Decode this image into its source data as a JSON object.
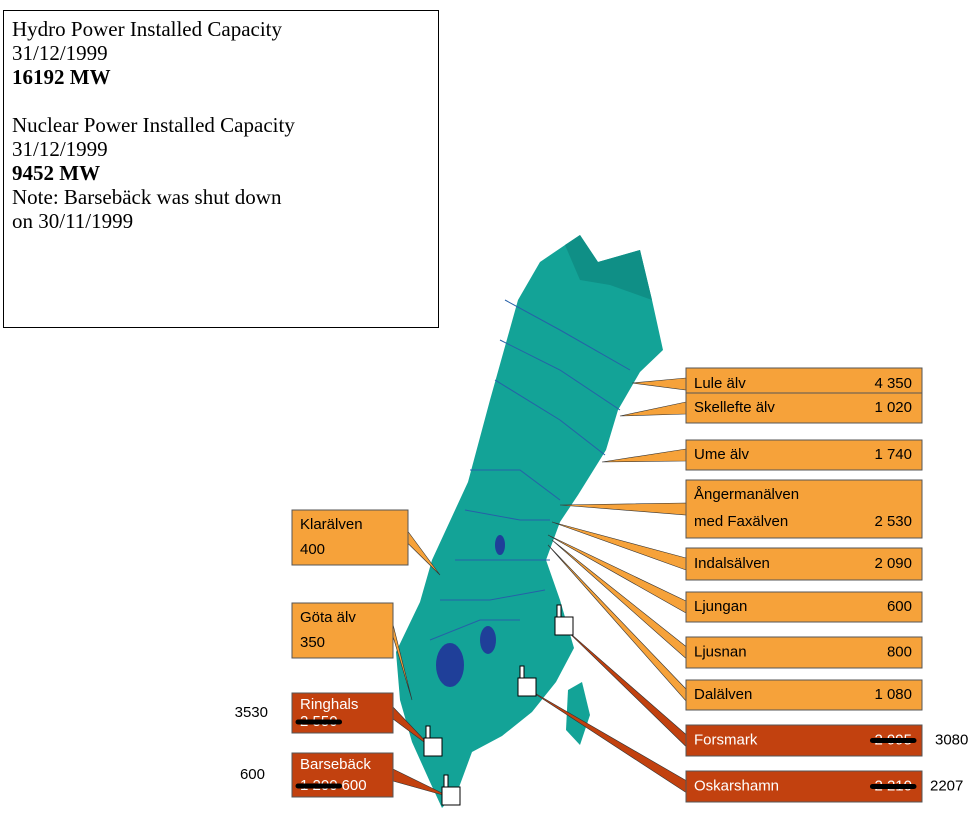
{
  "info": {
    "hydro": {
      "title": "Hydro Power Installed Capacity",
      "date": "31/12/1999",
      "value": "16192 MW"
    },
    "nuclear": {
      "title": "Nuclear Power Installed Capacity",
      "date": "31/12/1999",
      "value": "9452 MW",
      "note_line1": "Note: Barsebäck was shut down",
      "note_line2": "on 30/11/1999"
    }
  },
  "rivers": [
    {
      "name": "Lule älv",
      "value": "4 350"
    },
    {
      "name": "Skellefte älv",
      "value": "1 020"
    },
    {
      "name": "Ume älv",
      "value": "1 740"
    },
    {
      "name": "Ångermanälven",
      "name2": "med Faxälven",
      "value": "2 530"
    },
    {
      "name": "Indalsälven",
      "value": "2 090"
    },
    {
      "name": "Ljungan",
      "value": "600"
    },
    {
      "name": "Ljusnan",
      "value": "800"
    },
    {
      "name": "Dalälven",
      "value": "1 080"
    },
    {
      "name": "Klarälven",
      "value": "400"
    },
    {
      "name": "Göta älv",
      "value": "350"
    }
  ],
  "plants": [
    {
      "name": "Forsmark",
      "old": "2 995",
      "current": "3080"
    },
    {
      "name": "Oskarshamn",
      "old": "2 210",
      "current": "2207"
    },
    {
      "name": "Ringhals",
      "old": "2 550",
      "current": "3530"
    },
    {
      "name": "Barsebäck",
      "old": "1 200",
      "revised": "600",
      "current": "600"
    }
  ]
}
